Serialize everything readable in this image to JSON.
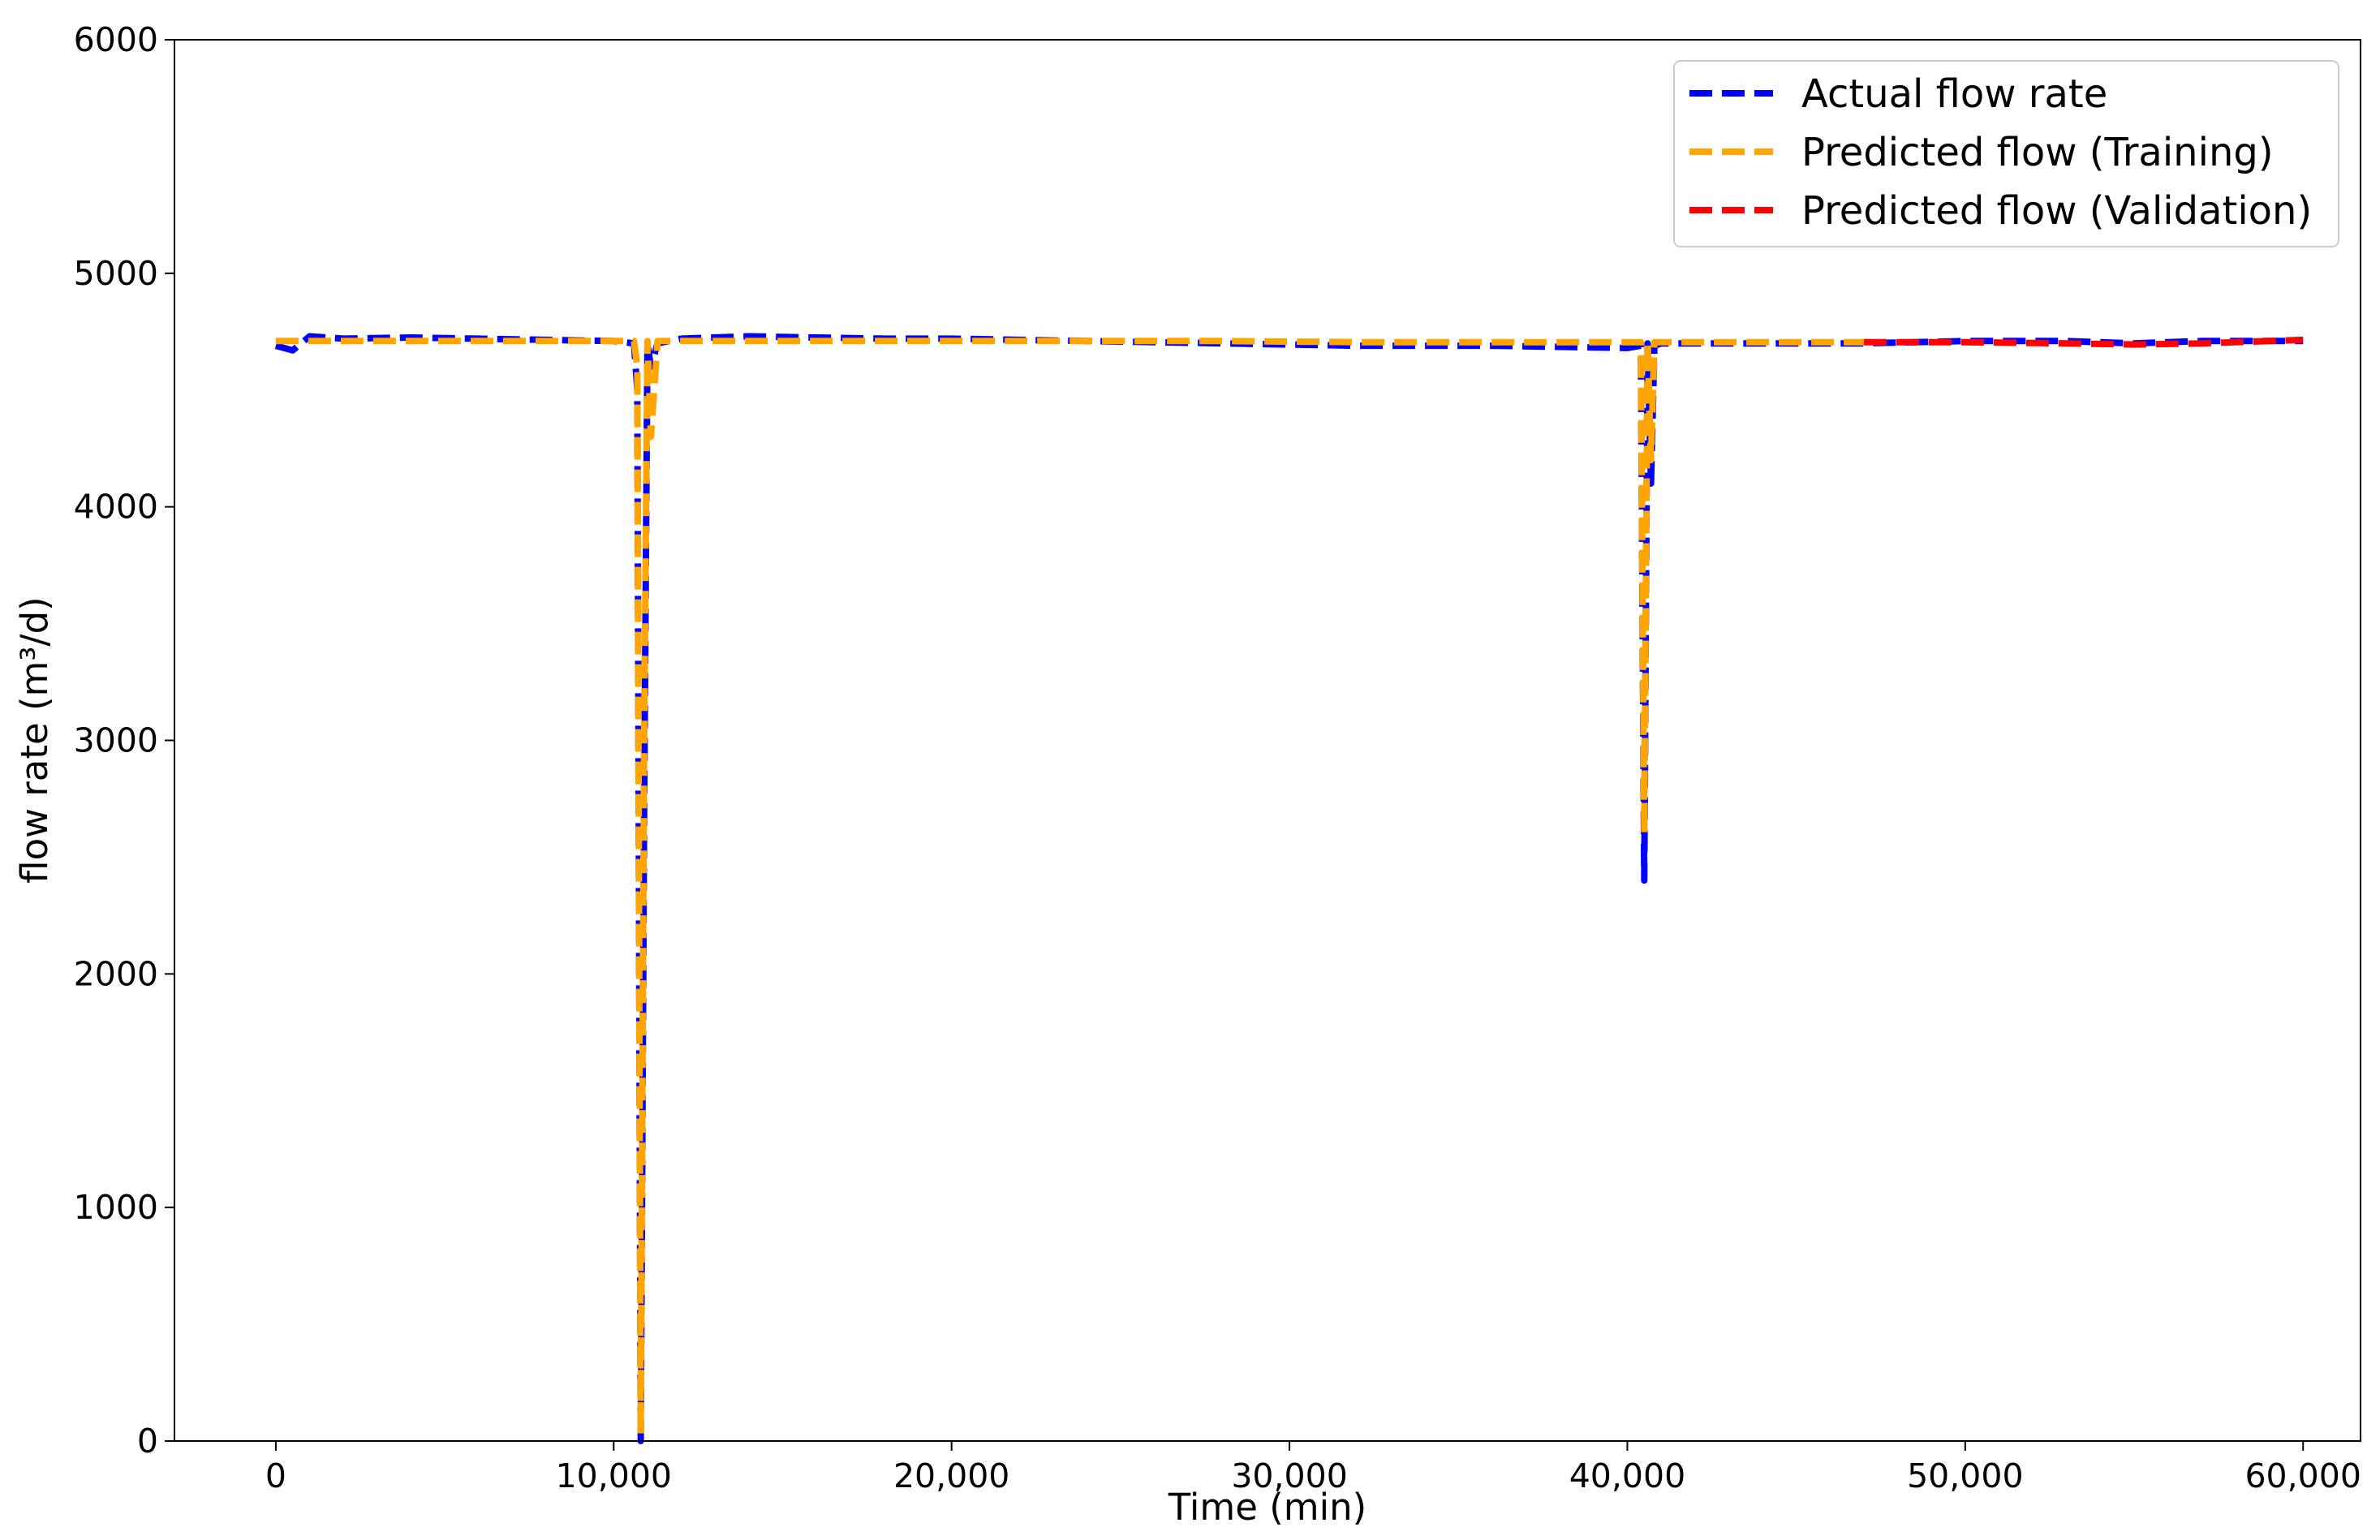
{
  "chart_data": {
    "type": "line",
    "xlabel": "Time (min)",
    "ylabel": "flow rate (m³/d)",
    "x": [
      0,
      500,
      1000,
      2000,
      4000,
      6000,
      8000,
      10000,
      10600,
      10700,
      10800,
      10900,
      11000,
      11100,
      11300,
      12000,
      14000,
      16000,
      18000,
      20000,
      24000,
      28000,
      32000,
      36000,
      40000,
      40400,
      40500,
      40600,
      40700,
      40800,
      41000,
      44000,
      47000,
      50000,
      53000,
      55000,
      57000,
      60000
    ],
    "series": [
      {
        "name": "Actual flow rate",
        "color": "#0000ff",
        "values": [
          4690,
          4670,
          4730,
          4720,
          4725,
          4720,
          4715,
          4710,
          4700,
          4500,
          0,
          2700,
          4700,
          4600,
          4700,
          4720,
          4730,
          4725,
          4720,
          4720,
          4710,
          4700,
          4690,
          4690,
          4680,
          4690,
          2400,
          4700,
          4100,
          4690,
          4700,
          4700,
          4700,
          4710,
          4710,
          4700,
          4710,
          4710
        ]
      },
      {
        "name": "Predicted flow (Training)",
        "color": "#ffa500",
        "values": [
          4710,
          4710,
          4710,
          4710,
          4710,
          4710,
          4710,
          4710,
          4710,
          4600,
          30,
          3000,
          4710,
          4300,
          4710,
          4710,
          4710,
          4710,
          4710,
          4710,
          4710,
          4710,
          4705,
          4705,
          4705,
          4705,
          2600,
          4705,
          4200,
          4705,
          4705,
          4705,
          4705,
          null,
          null,
          null,
          null,
          null
        ]
      },
      {
        "name": "Predicted flow (Validation)",
        "color": "#ff0000",
        "values": [
          null,
          null,
          null,
          null,
          null,
          null,
          null,
          null,
          null,
          null,
          null,
          null,
          null,
          null,
          null,
          null,
          null,
          null,
          null,
          null,
          null,
          null,
          null,
          null,
          null,
          null,
          null,
          null,
          null,
          null,
          null,
          null,
          4705,
          4705,
          4700,
          4695,
          4700,
          4715
        ]
      }
    ],
    "xlim": [
      -3000,
      61700
    ],
    "ylim": [
      0,
      6000
    ],
    "xticks": [
      0,
      {
        "value": 10000,
        "label": "10,000"
      },
      {
        "value": 20000,
        "label": "20,000"
      },
      {
        "value": 30000,
        "label": "30,000"
      },
      {
        "value": 40000,
        "label": "40,000"
      },
      {
        "value": 50000,
        "label": "50,000"
      },
      {
        "value": 60000,
        "label": "60,000"
      }
    ],
    "yticks": [
      0,
      1000,
      2000,
      3000,
      4000,
      5000,
      6000
    ],
    "legend": "upper-right",
    "dashed": true
  }
}
